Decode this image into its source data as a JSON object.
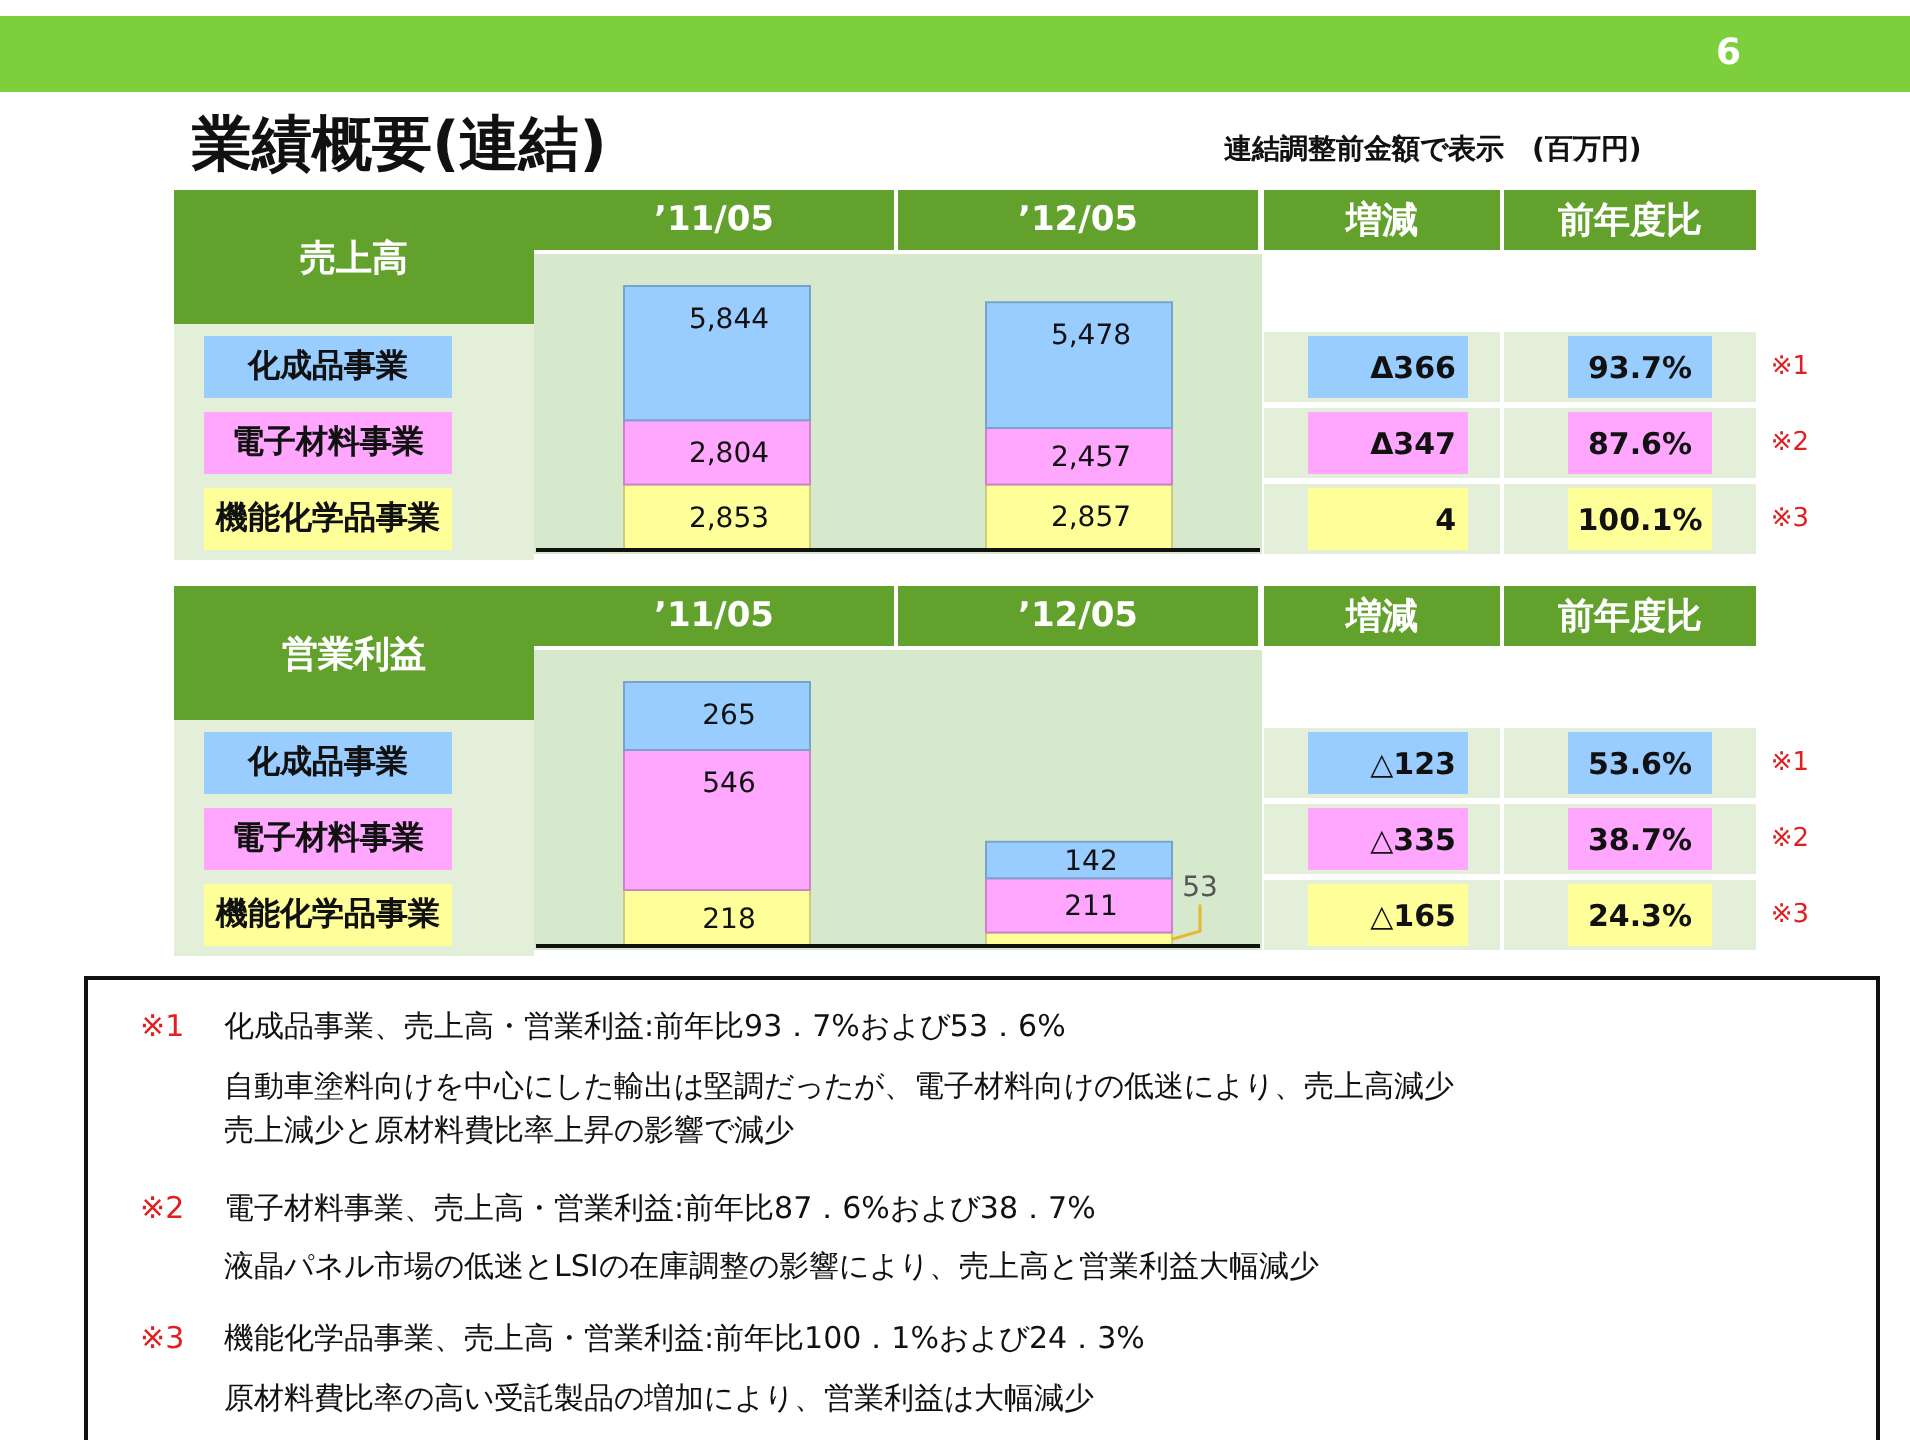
{
  "chart_data": [
    {
      "type": "bar",
      "stacked": true,
      "title": "業績概要(連結)",
      "subtitle": "連結調整前金額で表示　(百万円)",
      "ylabel": "売上高",
      "categories": [
        "’11/05",
        "’12/05"
      ],
      "series": [
        {
          "name": "機能化学品事業",
          "color": "#ffff99",
          "values": [
            2853,
            2857
          ],
          "value_labels": [
            "2,853",
            "2,857"
          ]
        },
        {
          "name": "電子材料事業",
          "color": "#ffa6ff",
          "values": [
            2804,
            2457
          ],
          "value_labels": [
            "2,804",
            "2,457"
          ]
        },
        {
          "name": "化成品事業",
          "color": "#99ccff",
          "values": [
            5844,
            5478
          ],
          "value_labels": [
            "5,844",
            "5,478"
          ]
        }
      ],
      "annotations": [
        "増減",
        "前年度比",
        "Δ366",
        "93.7%",
        "※1",
        "Δ347",
        "87.6%",
        "※2",
        "4",
        "100.1%",
        "※3"
      ]
    },
    {
      "type": "bar",
      "stacked": true,
      "ylabel": "営業利益",
      "categories": [
        "’11/05",
        "’12/05"
      ],
      "series": [
        {
          "name": "機能化学品事業",
          "color": "#ffff99",
          "values": [
            218,
            53
          ],
          "value_labels": [
            "218",
            "53"
          ]
        },
        {
          "name": "電子材料事業",
          "color": "#ffa6ff",
          "values": [
            546,
            211
          ],
          "value_labels": [
            "546",
            "211"
          ]
        },
        {
          "name": "化成品事業",
          "color": "#99ccff",
          "values": [
            265,
            142
          ],
          "value_labels": [
            "265",
            "142"
          ]
        }
      ],
      "annotations": [
        "増減",
        "前年度比",
        "△123",
        "53.6%",
        "※1",
        "△335",
        "38.7%",
        "※2",
        "△165",
        "24.3%",
        "※3"
      ]
    },
    {
      "type": "other",
      "annotations": [
        "6",
        "※1",
        "化成品事業、売上高・営業利益:前年比93．7%および53．6%",
        "自動車塗料向けを中心にした輸出は堅調だったが、電子材料向けの低迷により、売上高減少",
        "売上減少と原材料費比率上昇の影響で減少",
        "※2",
        "電子材料事業、売上高・営業利益:前年比87．6%および38．7%",
        "液晶パネル市場の低迷とLSIの在庫調整の影響により、売上高と営業利益大幅減少",
        "※3",
        "機能化学品事業、売上高・営業利益:前年比100．1%および24．3%",
        "原材料費比率の高い受託製品の増加により、営業利益は大幅減少"
      ]
    }
  ]
}
